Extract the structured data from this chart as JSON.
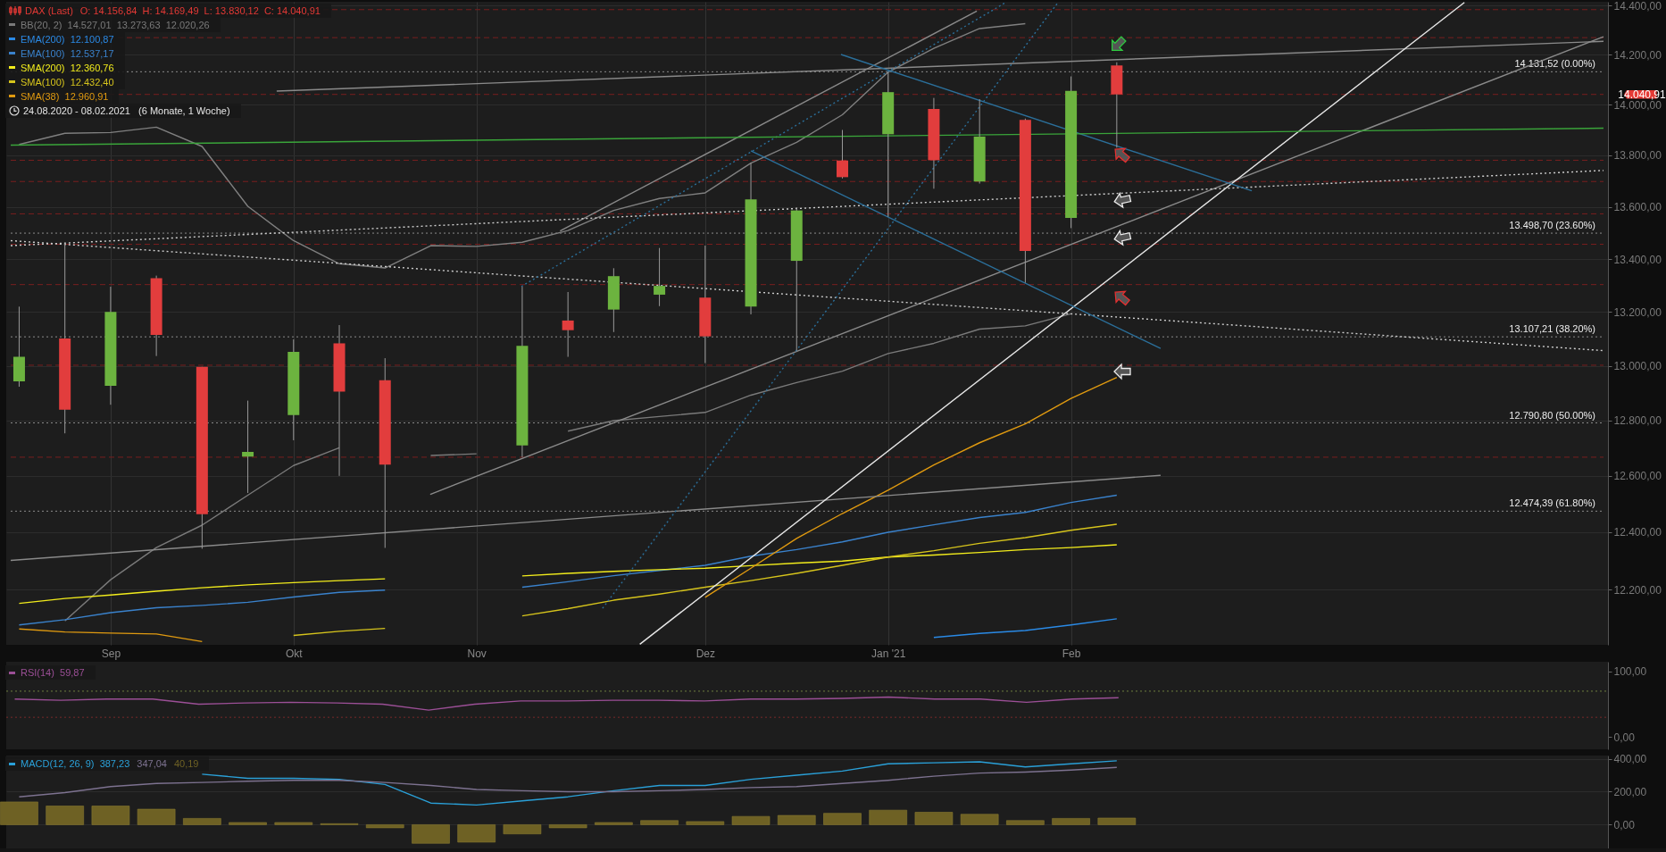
{
  "chart_data": [
    {
      "type": "candlestick",
      "title": "DAX (Last)",
      "subtitle": "O: 14.156,84  H: 14.169,49  L: 13.830,12  C: 14.040,91",
      "x": [
        "2020-08-24",
        "2020-08-31",
        "2020-09-07",
        "2020-09-14",
        "2020-09-21",
        "2020-09-28",
        "2020-10-05",
        "2020-10-12",
        "2020-10-19",
        "2020-10-26",
        "2020-11-02",
        "2020-11-09",
        "2020-11-16",
        "2020-11-23",
        "2020-11-30",
        "2020-12-07",
        "2020-12-14",
        "2020-12-21",
        "2020-12-28",
        "2021-01-04",
        "2021-01-11",
        "2021-01-18",
        "2021-01-25",
        "2021-02-01",
        "2021-02-08"
      ],
      "ohlc": [
        [
          12943,
          13220,
          12923,
          13033
        ],
        [
          13101,
          13459,
          12753,
          12839
        ],
        [
          12926,
          13295,
          12857,
          13200
        ],
        [
          13327,
          13337,
          13036,
          13114
        ],
        [
          12996,
          12996,
          12342,
          12464
        ],
        [
          12669,
          12872,
          12539,
          12686
        ],
        [
          12819,
          13098,
          12728,
          13051
        ],
        [
          13083,
          13151,
          12600,
          12905
        ],
        [
          12947,
          13028,
          12345,
          12640
        ],
        [
          null,
          null,
          null,
          null
        ],
        [
          null,
          null,
          null,
          null
        ],
        [
          12709,
          13295,
          12667,
          13074
        ],
        [
          13168,
          13275,
          13033,
          13132
        ],
        [
          13209,
          13365,
          13125,
          13335
        ],
        [
          13265,
          13442,
          13222,
          13298
        ],
        [
          13254,
          13451,
          13010,
          13109
        ],
        [
          13220,
          13770,
          13191,
          13629
        ],
        [
          13393,
          13598,
          13056,
          13586
        ],
        [
          13780,
          13900,
          13710,
          13715
        ],
        [
          13883,
          14132,
          13562,
          14050
        ],
        [
          13983,
          14027,
          13670,
          13781
        ],
        [
          13698,
          14022,
          13690,
          13874
        ],
        [
          13940,
          13945,
          13310,
          13431
        ],
        [
          13557,
          14113,
          13518,
          14055
        ],
        [
          14156.84,
          14169.49,
          13830.12,
          14040.91
        ]
      ],
      "colors": [
        "#6cb33f",
        "#e23d3d",
        "#6cb33f",
        "#e23d3d",
        "#e23d3d",
        "#6cb33f",
        "#6cb33f",
        "#e23d3d",
        "#e23d3d",
        "#e23d3d",
        "#6cb33f",
        "#6cb33f",
        "#e23d3d",
        "#6cb33f",
        "#6cb33f",
        "#e23d3d",
        "#6cb33f",
        "#6cb33f",
        "#e23d3d",
        "#6cb33f",
        "#e23d3d",
        "#6cb33f",
        "#e23d3d",
        "#6cb33f",
        "#e23d3d"
      ],
      "series": [
        {
          "type": "line",
          "color": "#808080",
          "values": [
            13843,
            13887,
            13890,
            13911,
            13835,
            13602,
            13470,
            13382,
            13366,
            13451,
            13448,
            13464,
            13509,
            13586,
            13632,
            13654,
            13770,
            13851,
            13960,
            14130,
            14226,
            14306,
            14326,
            null,
            null
          ]
        },
        {
          "type": "line",
          "name": "BB(20, 2)  14.527,01  13.273,63  12.020,26",
          "color": "#7a7a7a",
          "values": [
            null,
            12092,
            12234,
            12346,
            12425,
            12531,
            12637,
            12701,
            null,
            12673,
            12679,
            null,
            12761,
            12799,
            12814,
            12829,
            12892,
            12938,
            12980,
            13045,
            13083,
            13136,
            13148,
            13193,
            null
          ]
        },
        {
          "type": "line",
          "name": "EMA(200)  12.100,87",
          "color": "#2a8ae6",
          "values": [
            null,
            null,
            null,
            null,
            null,
            null,
            null,
            null,
            null,
            null,
            null,
            null,
            null,
            null,
            null,
            null,
            null,
            null,
            null,
            null,
            12035,
            12049,
            12059,
            12078,
            12099
          ]
        },
        {
          "type": "line",
          "name": "EMA(100)  12.537,17",
          "color": "#3a82cc",
          "values": [
            12078,
            12096,
            12120,
            12137,
            12145,
            12156,
            12174,
            12190,
            12198,
            null,
            null,
            12208,
            12227,
            12248,
            12266,
            12284,
            12316,
            12339,
            12366,
            12400,
            12426,
            12452,
            12470,
            12505,
            12531
          ]
        },
        {
          "type": "line",
          "name": "SMA(200)  12.360,76",
          "color": "#f2ec1c",
          "values": [
            12152,
            12169,
            12181,
            12194,
            12206,
            12216,
            12224,
            12231,
            12237,
            null,
            null,
            12247,
            12256,
            12263,
            12269,
            12274,
            12283,
            12292,
            12299,
            12313,
            12320,
            12329,
            12339,
            12346,
            12356
          ]
        },
        {
          "type": "line",
          "name": "SMA(100)  12.432,40",
          "color": "#d6c41c",
          "values": [
            null,
            null,
            null,
            null,
            null,
            null,
            12042,
            12056,
            12066,
            null,
            null,
            12109,
            12134,
            12163,
            12184,
            12208,
            12231,
            12256,
            12284,
            12313,
            12335,
            12361,
            12381,
            12407,
            12428
          ]
        },
        {
          "type": "line",
          "name": "SMA(38)  12.960,91",
          "color": "#e09a10",
          "values": [
            12064,
            12054,
            12050,
            12047,
            12021,
            null,
            null,
            null,
            null,
            null,
            null,
            null,
            null,
            null,
            null,
            12173,
            12274,
            12378,
            12466,
            12549,
            12639,
            12719,
            12787,
            12880,
            12957
          ]
        },
        {
          "type": "line",
          "color": "#8a8a8a",
          "x": [
            "2020-10-02T10:00",
            "2021-04-23T12:00"
          ],
          "values": [
            14054,
            14254
          ]
        },
        {
          "type": "line",
          "color": "#8a8a8a",
          "x": [
            "2020-08-22T17:00",
            "2021-02-14T17:00"
          ],
          "values": [
            12301,
            12602
          ]
        },
        {
          "type": "line",
          "color": "#8a8a8a",
          "x": [
            "2020-10-25T22:00",
            "2021-04-23T12:00"
          ],
          "values": [
            12534,
            14273
          ]
        },
        {
          "type": "line",
          "color": "#8a8a8a",
          "x": [
            "2020-11-14T19:00",
            "2021-01-17T14:00"
          ],
          "values": [
            13507,
            14377
          ]
        },
        {
          "type": "line",
          "color": "#e8e8e8",
          "x": [
            "2020-11-27T00:00",
            "2021-04-02T05:00"
          ],
          "values": [
            12012,
            14412
          ]
        },
        {
          "type": "line",
          "color": "#cfcfcf",
          "line_style": "dotted",
          "x": [
            "2020-08-22T17:00",
            "2021-04-23T12:00"
          ],
          "values": [
            13451,
            13741
          ]
        },
        {
          "type": "line",
          "color": "#cfcfcf",
          "line_style": "dotted",
          "x": [
            "2020-08-22T17:00",
            "2021-04-23T12:00"
          ],
          "values": [
            13470,
            13056
          ]
        },
        {
          "type": "line",
          "color": "#2b6f9a",
          "x": [
            "2020-12-27T19:00",
            "2021-02-28T16:00"
          ],
          "values": [
            14201,
            13662
          ]
        },
        {
          "type": "line",
          "color": "#2b6f9a",
          "x": [
            "2020-12-14T00:00",
            "2021-02-14T17:00"
          ],
          "values": [
            13818,
            13064
          ]
        },
        {
          "type": "line",
          "color": "#2b6f9a",
          "line_style": "dotted",
          "x": [
            "2020-11-08T21:00",
            "2021-01-22T00:00"
          ],
          "values": [
            13296,
            14412
          ]
        },
        {
          "type": "line",
          "color": "#2b6f9a",
          "line_style": "dotted",
          "x": [
            "2020-11-21T07:00",
            "2021-01-30T00:00"
          ],
          "values": [
            12135,
            14412
          ]
        },
        {
          "type": "line",
          "color": "#3aa53a",
          "x": [
            "2020-08-22T17:00",
            "2021-04-23T12:00"
          ],
          "values": [
            13840,
            13907
          ]
        }
      ],
      "xlim": [
        "2020-08-22T17:00",
        "2021-04-23T12:00"
      ],
      "xticks": [
        {
          "value": "2020-09-07",
          "label": "Sep"
        },
        {
          "value": "2020-10-05",
          "label": "Okt"
        },
        {
          "value": "2020-11-02",
          "label": "Nov"
        },
        {
          "value": "2020-12-07",
          "label": "Dez"
        },
        {
          "value": "2021-01-04",
          "label": "Jan '21"
        },
        {
          "value": "2021-02-01",
          "label": "Feb"
        }
      ],
      "ylim": [
        12010,
        14415
      ],
      "yticks": [
        {
          "value": 12200,
          "label": "12.200,00"
        },
        {
          "value": 12400,
          "label": "12.400,00"
        },
        {
          "value": 12600,
          "label": "12.600,00"
        },
        {
          "value": 12800,
          "label": "12.800,00"
        },
        {
          "value": 13000,
          "label": "13.000,00"
        },
        {
          "value": 13200,
          "label": "13.200,00"
        },
        {
          "value": 13400,
          "label": "13.400,00"
        },
        {
          "value": 13600,
          "label": "13.600,00"
        },
        {
          "value": 13800,
          "label": "13.800,00"
        },
        {
          "value": 14000,
          "label": "14.000,00"
        },
        {
          "value": 14200,
          "label": "14.200,00"
        },
        {
          "value": 14400,
          "label": "14.400,00"
        }
      ],
      "log": true,
      "grid": true,
      "legend": "top left",
      "ref_lines": [
        {
          "axis": "y",
          "value": 14383,
          "color": "#7a1f1f",
          "line_style": "dashed"
        },
        {
          "axis": "y",
          "value": 14269,
          "color": "#7a1f1f",
          "line_style": "dashed"
        },
        {
          "axis": "y",
          "value": 14040.91,
          "label": "14.040,91",
          "color": "#7a1f1f",
          "line_style": "dashed"
        },
        {
          "axis": "y",
          "value": 13781,
          "color": "#7a1f1f",
          "line_style": "dashed"
        },
        {
          "axis": "y",
          "value": 13698,
          "color": "#7a1f1f",
          "line_style": "dashed"
        },
        {
          "axis": "y",
          "value": 13573,
          "color": "#7a1f1f",
          "line_style": "dashed"
        },
        {
          "axis": "y",
          "value": 13456,
          "color": "#7a1f1f",
          "line_style": "dashed"
        },
        {
          "axis": "y",
          "value": 13303,
          "color": "#7a1f1f",
          "line_style": "dashed"
        },
        {
          "axis": "y",
          "value": 13002,
          "color": "#7a1f1f",
          "line_style": "dashed"
        },
        {
          "axis": "y",
          "value": 12667,
          "color": "#7a1f1f",
          "line_style": "dashed"
        },
        {
          "axis": "y",
          "value": 14131.52,
          "label": "14.131,52 (0.00%)",
          "color": "#8c8c8c",
          "line_style": "dotted"
        },
        {
          "axis": "y",
          "value": 13498.7,
          "label": "13.498,70 (23.60%)",
          "color": "#8c8c8c",
          "line_style": "dotted"
        },
        {
          "axis": "y",
          "value": 13107.21,
          "label": "13.107,21 (38.20%)",
          "color": "#8c8c8c",
          "line_style": "dotted"
        },
        {
          "axis": "y",
          "value": 12790.8,
          "label": "12.790,80 (50.00%)",
          "color": "#8c8c8c",
          "line_style": "dotted"
        },
        {
          "axis": "y",
          "value": 12474.39,
          "label": "12.474,39 (61.80%)",
          "color": "#8c8c8c",
          "line_style": "dotted"
        }
      ],
      "annotations": [
        "24.08.2020 - 08.02.2021   (6 Monate, 1 Woche)"
      ]
    },
    {
      "type": "line",
      "categories": [
        null,
        null,
        null,
        null,
        null,
        null,
        null,
        null,
        null,
        null,
        null,
        null,
        null,
        null,
        null,
        null,
        null,
        null,
        null,
        null,
        null,
        null,
        null,
        null,
        null
      ],
      "series": [
        {
          "name": "RSI(14)  59,87",
          "color": "#9b4f96",
          "values": [
            58,
            56,
            58,
            58,
            50,
            52,
            53,
            52,
            50,
            41,
            50,
            55,
            55,
            56,
            56,
            55,
            58,
            58,
            59,
            61,
            58,
            58,
            53,
            58,
            59.87
          ]
        }
      ],
      "ylim": [
        -19,
        115
      ],
      "yticks": [
        {
          "value": 0,
          "label": "0,00"
        },
        {
          "value": 100,
          "label": "100,00"
        }
      ],
      "legend": "top left",
      "ref_lines": [
        {
          "axis": "y",
          "value": 70,
          "color": "#6f7f3f",
          "line_style": "dotted"
        },
        {
          "axis": "y",
          "value": 30,
          "color": "#7a2a2a",
          "line_style": "dotted"
        }
      ]
    },
    {
      "type": "line",
      "categories": [
        null,
        null,
        null,
        null,
        null,
        null,
        null,
        null,
        null,
        null,
        null,
        null,
        null,
        null,
        null,
        null,
        null,
        null,
        null,
        null,
        null,
        null,
        null,
        null,
        null
      ],
      "series": [
        {
          "type": "line",
          "name": "MACD(12, 26, 9)  387,23",
          "color": "#2aa0d8",
          "values": [
            null,
            null,
            null,
            null,
            306,
            281,
            281,
            275,
            244,
            131,
            119,
            144,
            169,
            206,
            238,
            238,
            275,
            300,
            325,
            369,
            375,
            381,
            350,
            369,
            387.23
          ]
        },
        {
          "type": "line",
          "name": "347,04",
          "color": "#7d7290",
          "values": [
            169,
            194,
            231,
            250,
            256,
            263,
            269,
            269,
            256,
            238,
            213,
            206,
            200,
            200,
            206,
            213,
            225,
            231,
            250,
            269,
            294,
            313,
            319,
            331,
            347.04
          ]
        },
        {
          "type": "bar",
          "name": "40,19",
          "color": "#6e6124",
          "values": [
            138,
            113,
            113,
            94,
            38,
            13,
            13,
            6,
            -19,
            -113,
            -106,
            -56,
            -19,
            13,
            25,
            19,
            50,
            56,
            69,
            88,
            75,
            63,
            25,
            38,
            40.19
          ]
        }
      ],
      "ylim": [
        -144,
        419
      ],
      "yticks": [
        {
          "value": 0,
          "label": "0,00"
        },
        {
          "value": 200,
          "label": "200,00"
        },
        {
          "value": 400,
          "label": "400,00"
        }
      ],
      "grid": "y",
      "legend": "top left"
    }
  ]
}
